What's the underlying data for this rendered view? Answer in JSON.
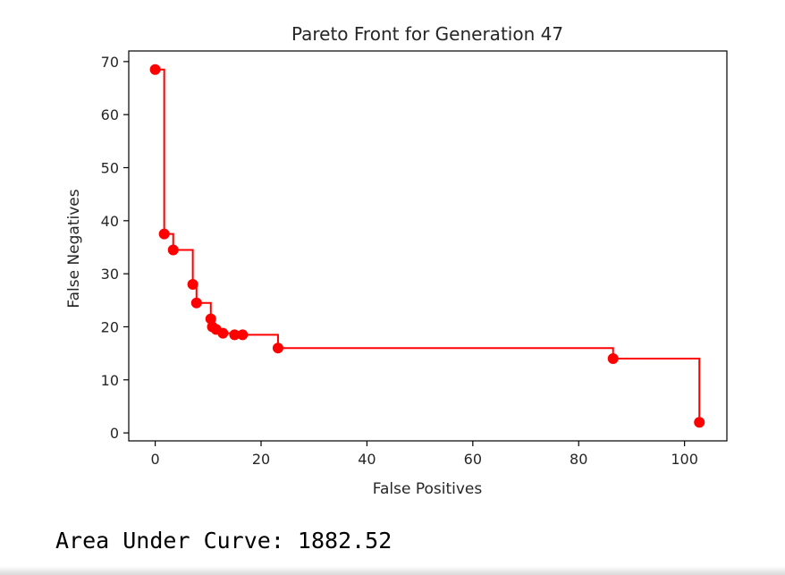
{
  "chart_data": {
    "type": "scatter",
    "title": "Pareto Front for Generation 47",
    "xlabel": "False Positives",
    "ylabel": "False Negatives",
    "xlim": [
      -5,
      108
    ],
    "ylim": [
      -1.5,
      72
    ],
    "xticks": [
      0,
      20,
      40,
      60,
      80,
      100
    ],
    "yticks": [
      0,
      10,
      20,
      30,
      40,
      50,
      60,
      70
    ],
    "grid": false,
    "marker_color": "#ff0000",
    "line_color": "#ff0000",
    "points": [
      {
        "x": 0,
        "y": 68.5
      },
      {
        "x": 1.7,
        "y": 37.5
      },
      {
        "x": 3.4,
        "y": 34.5
      },
      {
        "x": 7.1,
        "y": 28
      },
      {
        "x": 7.8,
        "y": 24.5
      },
      {
        "x": 10.5,
        "y": 21.5
      },
      {
        "x": 10.8,
        "y": 20
      },
      {
        "x": 11.5,
        "y": 19.5
      },
      {
        "x": 12.8,
        "y": 18.8
      },
      {
        "x": 15,
        "y": 18.5
      },
      {
        "x": 16.5,
        "y": 18.5
      },
      {
        "x": 23.2,
        "y": 16
      },
      {
        "x": 86.5,
        "y": 14
      },
      {
        "x": 102.8,
        "y": 2
      }
    ]
  },
  "output": {
    "auc_text": "Area Under Curve: 1882.52"
  }
}
